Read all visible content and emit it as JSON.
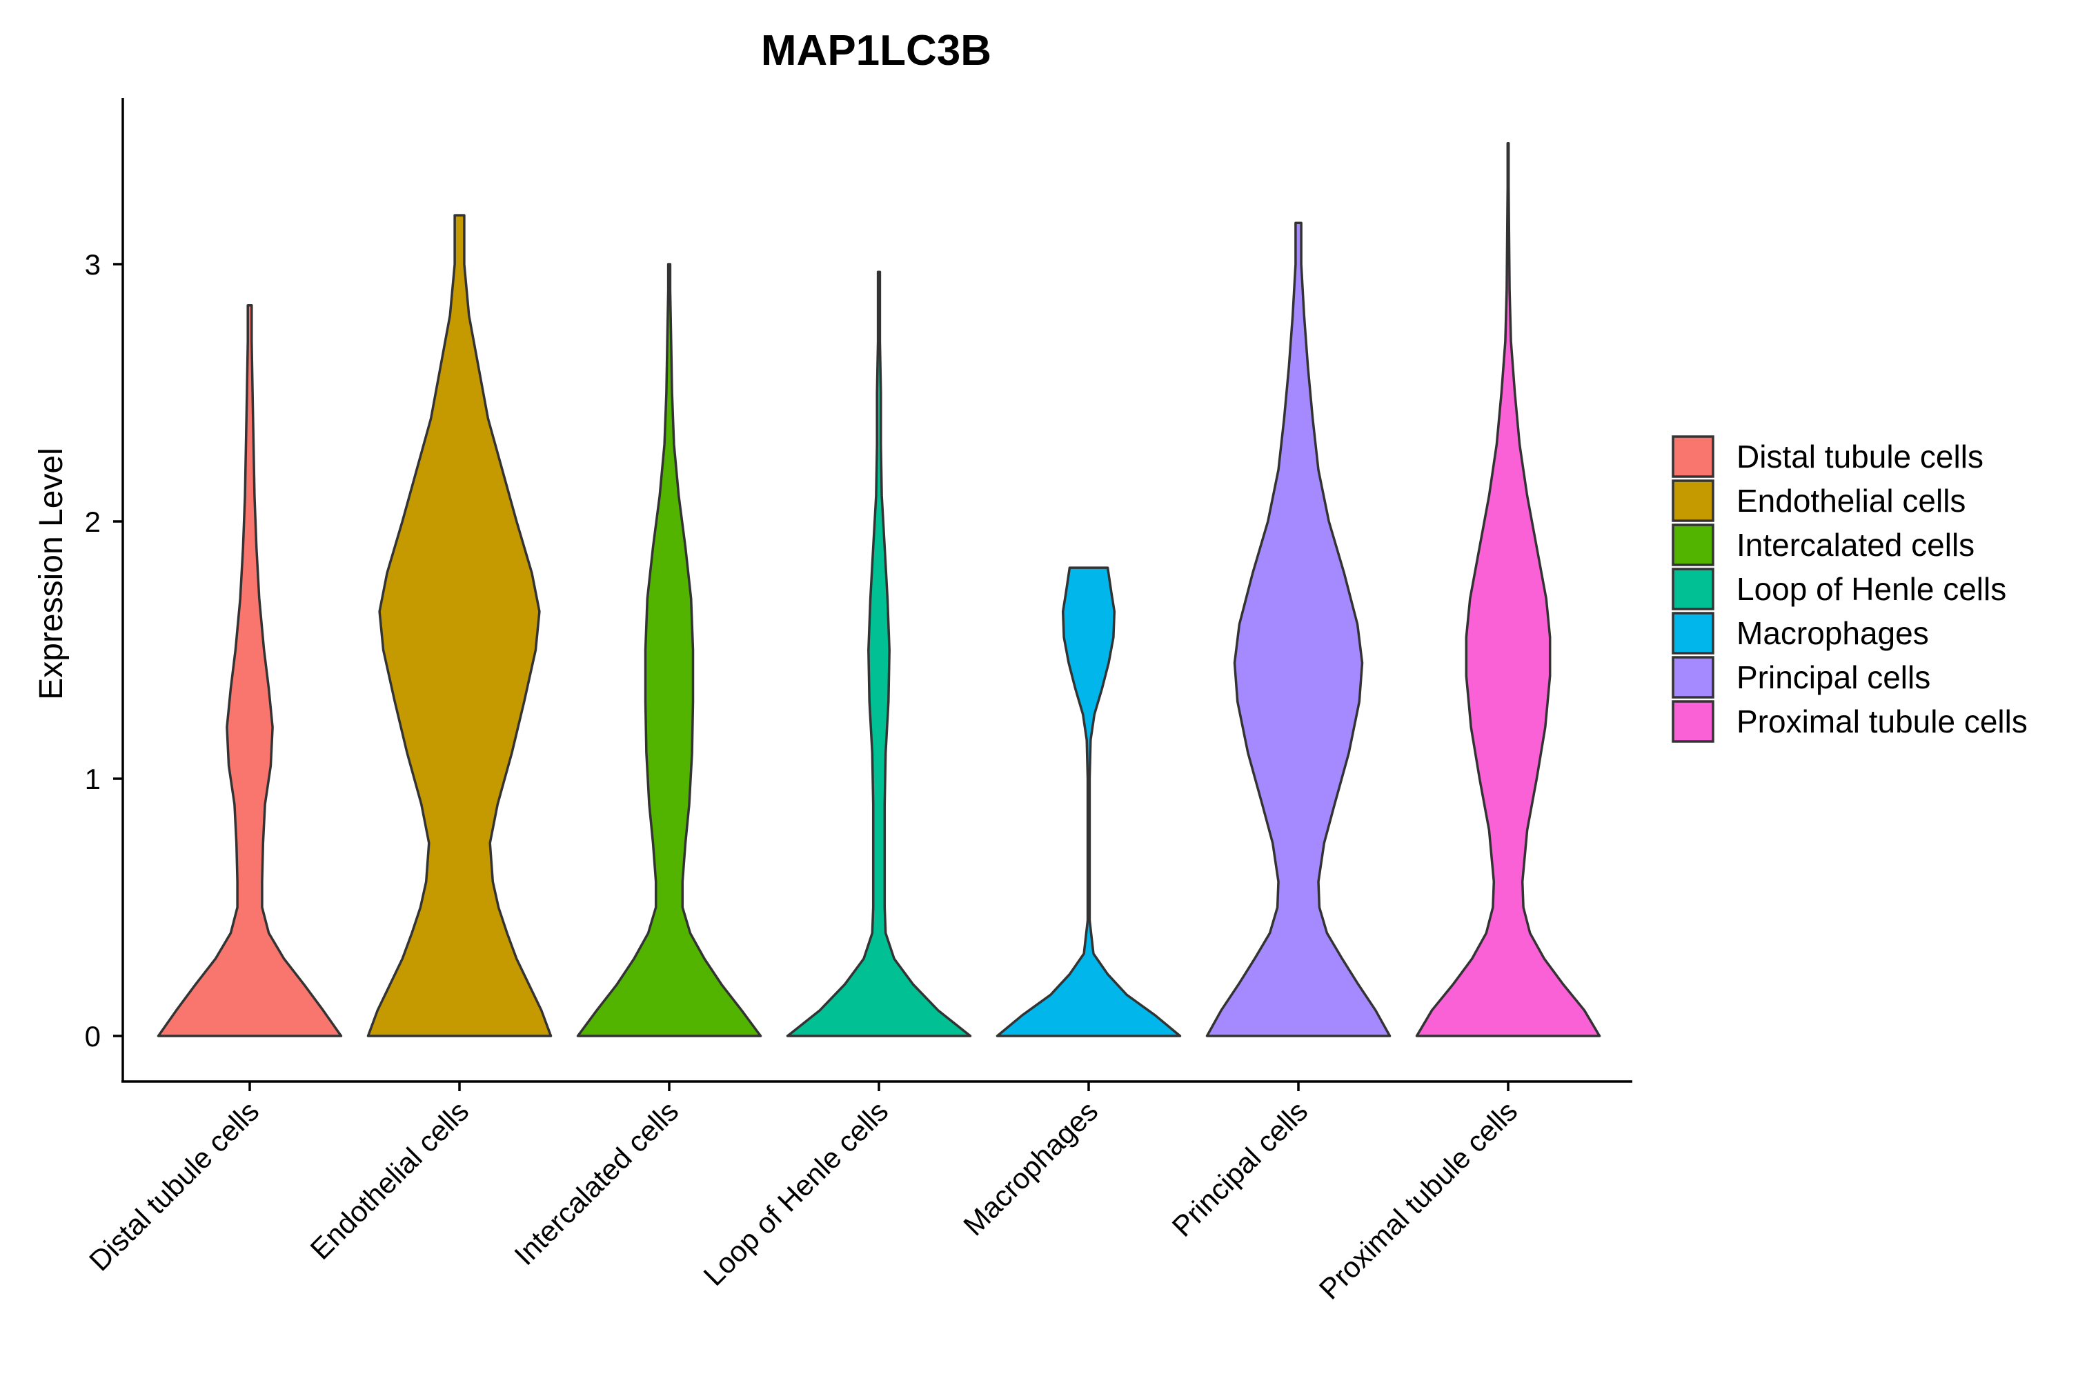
{
  "chart_data": {
    "type": "violin",
    "title": "MAP1LC3B",
    "xlabel": "",
    "ylabel": "Expression Level",
    "ylim": [
      -0.17,
      3.63
    ],
    "yticks": [
      0,
      1,
      2,
      3
    ],
    "legend_position": "right",
    "categories": [
      "Distal tubule cells",
      "Endothelial cells",
      "Intercalated cells",
      "Loop of Henle cells",
      "Macrophages",
      "Principal cells",
      "Proximal tubule cells"
    ],
    "colors": [
      "#F8766D",
      "#C49A00",
      "#53B400",
      "#00C094",
      "#00B6EB",
      "#A58AFF",
      "#FB61D7"
    ],
    "series": [
      {
        "name": "Distal tubule cells",
        "max": 2.84,
        "density": [
          [
            0,
            0.96
          ],
          [
            0.1,
            0.77
          ],
          [
            0.2,
            0.57
          ],
          [
            0.3,
            0.36
          ],
          [
            0.4,
            0.2
          ],
          [
            0.5,
            0.13
          ],
          [
            0.6,
            0.13
          ],
          [
            0.75,
            0.14
          ],
          [
            0.9,
            0.16
          ],
          [
            1.05,
            0.22
          ],
          [
            1.2,
            0.24
          ],
          [
            1.35,
            0.2
          ],
          [
            1.5,
            0.15
          ],
          [
            1.7,
            0.1
          ],
          [
            1.9,
            0.07
          ],
          [
            2.1,
            0.05
          ],
          [
            2.3,
            0.04
          ],
          [
            2.5,
            0.03
          ],
          [
            2.7,
            0.02
          ],
          [
            2.84,
            0.02
          ]
        ]
      },
      {
        "name": "Endothelial cells",
        "max": 3.19,
        "density": [
          [
            0,
            0.96
          ],
          [
            0.1,
            0.86
          ],
          [
            0.2,
            0.73
          ],
          [
            0.3,
            0.6
          ],
          [
            0.4,
            0.5
          ],
          [
            0.5,
            0.41
          ],
          [
            0.6,
            0.35
          ],
          [
            0.75,
            0.32
          ],
          [
            0.9,
            0.4
          ],
          [
            1.1,
            0.55
          ],
          [
            1.3,
            0.68
          ],
          [
            1.5,
            0.8
          ],
          [
            1.65,
            0.84
          ],
          [
            1.8,
            0.76
          ],
          [
            2.0,
            0.6
          ],
          [
            2.2,
            0.45
          ],
          [
            2.4,
            0.3
          ],
          [
            2.6,
            0.2
          ],
          [
            2.8,
            0.1
          ],
          [
            3.0,
            0.05
          ],
          [
            3.19,
            0.05
          ]
        ]
      },
      {
        "name": "Intercalated cells",
        "max": 3.0,
        "density": [
          [
            0,
            0.96
          ],
          [
            0.1,
            0.76
          ],
          [
            0.2,
            0.55
          ],
          [
            0.3,
            0.37
          ],
          [
            0.4,
            0.22
          ],
          [
            0.5,
            0.14
          ],
          [
            0.6,
            0.14
          ],
          [
            0.75,
            0.17
          ],
          [
            0.9,
            0.21
          ],
          [
            1.1,
            0.24
          ],
          [
            1.3,
            0.25
          ],
          [
            1.5,
            0.25
          ],
          [
            1.7,
            0.23
          ],
          [
            1.9,
            0.17
          ],
          [
            2.1,
            0.1
          ],
          [
            2.3,
            0.05
          ],
          [
            2.5,
            0.03
          ],
          [
            2.7,
            0.02
          ],
          [
            2.9,
            0.01
          ],
          [
            3.0,
            0.01
          ]
        ]
      },
      {
        "name": "Loop of Henle cells",
        "max": 2.97,
        "density": [
          [
            0,
            0.96
          ],
          [
            0.1,
            0.62
          ],
          [
            0.2,
            0.36
          ],
          [
            0.3,
            0.16
          ],
          [
            0.4,
            0.07
          ],
          [
            0.5,
            0.06
          ],
          [
            0.7,
            0.06
          ],
          [
            0.9,
            0.06
          ],
          [
            1.1,
            0.07
          ],
          [
            1.3,
            0.1
          ],
          [
            1.5,
            0.11
          ],
          [
            1.7,
            0.09
          ],
          [
            1.9,
            0.06
          ],
          [
            2.1,
            0.03
          ],
          [
            2.3,
            0.02
          ],
          [
            2.5,
            0.02
          ],
          [
            2.7,
            0.01
          ],
          [
            2.97,
            0.01
          ]
        ]
      },
      {
        "name": "Macrophages",
        "max": 1.82,
        "density": [
          [
            0,
            0.96
          ],
          [
            0.08,
            0.7
          ],
          [
            0.16,
            0.4
          ],
          [
            0.24,
            0.2
          ],
          [
            0.32,
            0.05
          ],
          [
            0.45,
            0.01
          ],
          [
            0.7,
            0.01
          ],
          [
            1.0,
            0.01
          ],
          [
            1.15,
            0.02
          ],
          [
            1.25,
            0.06
          ],
          [
            1.35,
            0.14
          ],
          [
            1.45,
            0.21
          ],
          [
            1.55,
            0.26
          ],
          [
            1.65,
            0.27
          ],
          [
            1.72,
            0.24
          ],
          [
            1.82,
            0.2
          ]
        ]
      },
      {
        "name": "Principal cells",
        "max": 3.16,
        "density": [
          [
            0,
            0.96
          ],
          [
            0.1,
            0.81
          ],
          [
            0.2,
            0.63
          ],
          [
            0.3,
            0.46
          ],
          [
            0.4,
            0.3
          ],
          [
            0.5,
            0.22
          ],
          [
            0.6,
            0.21
          ],
          [
            0.75,
            0.27
          ],
          [
            0.9,
            0.38
          ],
          [
            1.1,
            0.53
          ],
          [
            1.3,
            0.64
          ],
          [
            1.45,
            0.67
          ],
          [
            1.6,
            0.62
          ],
          [
            1.8,
            0.48
          ],
          [
            2.0,
            0.32
          ],
          [
            2.2,
            0.21
          ],
          [
            2.4,
            0.15
          ],
          [
            2.6,
            0.1
          ],
          [
            2.8,
            0.06
          ],
          [
            3.0,
            0.03
          ],
          [
            3.16,
            0.03
          ]
        ]
      },
      {
        "name": "Proximal tubule cells",
        "max": 3.47,
        "density": [
          [
            0,
            0.96
          ],
          [
            0.1,
            0.8
          ],
          [
            0.2,
            0.58
          ],
          [
            0.3,
            0.38
          ],
          [
            0.4,
            0.23
          ],
          [
            0.5,
            0.16
          ],
          [
            0.6,
            0.15
          ],
          [
            0.8,
            0.2
          ],
          [
            1.0,
            0.3
          ],
          [
            1.2,
            0.39
          ],
          [
            1.4,
            0.44
          ],
          [
            1.55,
            0.44
          ],
          [
            1.7,
            0.4
          ],
          [
            1.9,
            0.3
          ],
          [
            2.1,
            0.2
          ],
          [
            2.3,
            0.12
          ],
          [
            2.5,
            0.07
          ],
          [
            2.7,
            0.03
          ],
          [
            2.9,
            0.015
          ],
          [
            3.1,
            0.01
          ],
          [
            3.3,
            0.005
          ],
          [
            3.47,
            0.005
          ]
        ]
      }
    ]
  }
}
